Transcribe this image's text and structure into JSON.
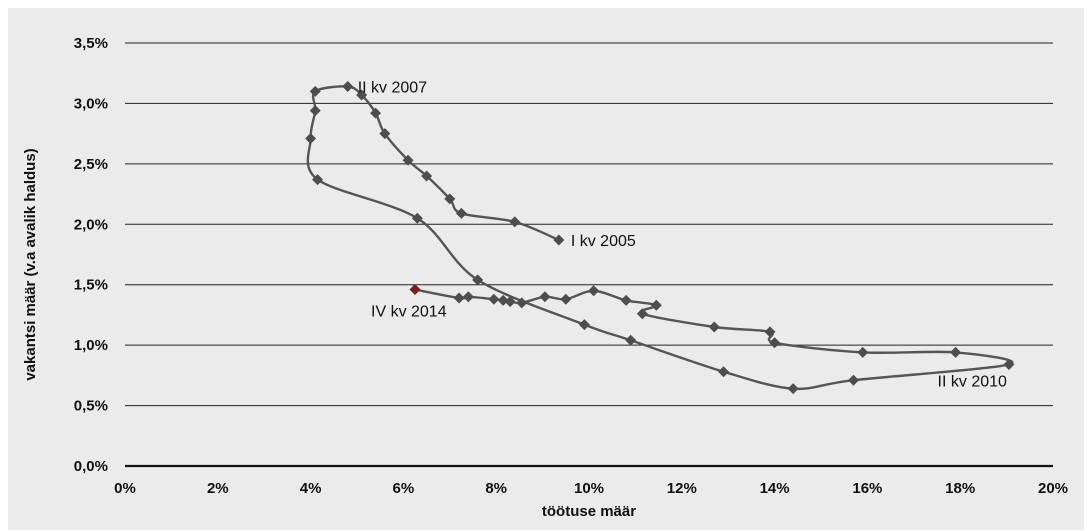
{
  "chart_data": {
    "type": "scatter",
    "title": "",
    "xlabel": "töötuse määr",
    "ylabel": "vakantsi määr (v.a avalik haldus)",
    "xlim": [
      0,
      20
    ],
    "ylim": [
      0,
      3.5
    ],
    "x_ticks": [
      "0%",
      "2%",
      "4%",
      "6%",
      "8%",
      "10%",
      "12%",
      "14%",
      "16%",
      "18%",
      "20%"
    ],
    "y_ticks": [
      "0,0%",
      "0,5%",
      "1,0%",
      "1,5%",
      "2,0%",
      "2,5%",
      "3,0%",
      "3,5%"
    ],
    "grid": "horizontal",
    "legend": "none",
    "series": [
      {
        "color": "#555555",
        "points": [
          [
            9.35,
            1.87
          ],
          [
            8.4,
            2.02
          ],
          [
            7.25,
            2.09
          ],
          [
            7.0,
            2.21
          ],
          [
            6.5,
            2.4
          ],
          [
            6.1,
            2.53
          ],
          [
            5.6,
            2.75
          ],
          [
            5.4,
            2.92
          ],
          [
            5.1,
            3.07
          ],
          [
            4.8,
            3.14
          ],
          [
            4.1,
            3.1
          ],
          [
            4.1,
            2.94
          ],
          [
            4.0,
            2.71
          ],
          [
            4.15,
            2.37
          ],
          [
            6.3,
            2.05
          ],
          [
            7.6,
            1.54
          ],
          [
            9.9,
            1.17
          ],
          [
            10.9,
            1.04
          ],
          [
            12.9,
            0.78
          ],
          [
            14.4,
            0.64
          ],
          [
            15.7,
            0.71
          ],
          [
            19.05,
            0.84
          ],
          [
            17.9,
            0.94
          ],
          [
            15.9,
            0.94
          ],
          [
            14.0,
            1.02
          ],
          [
            13.9,
            1.11
          ],
          [
            12.7,
            1.15
          ],
          [
            11.15,
            1.26
          ],
          [
            11.45,
            1.33
          ],
          [
            10.8,
            1.37
          ],
          [
            10.1,
            1.45
          ],
          [
            9.5,
            1.38
          ],
          [
            9.05,
            1.4
          ],
          [
            8.55,
            1.35
          ],
          [
            8.3,
            1.36
          ],
          [
            8.15,
            1.37
          ],
          [
            7.95,
            1.38
          ],
          [
            7.4,
            1.4
          ],
          [
            7.2,
            1.39
          ],
          [
            6.25,
            1.46
          ]
        ],
        "last_point_color": "#7a1f1f"
      }
    ],
    "annotations": [
      {
        "text": "I kv 2005",
        "x": 9.35,
        "y": 1.87
      },
      {
        "text": "II kv 2007",
        "x": 4.8,
        "y": 3.14
      },
      {
        "text": "II kv 2010",
        "x": 19.05,
        "y": 0.84
      },
      {
        "text": "IV kv 2014",
        "x": 6.25,
        "y": 1.46
      }
    ]
  }
}
